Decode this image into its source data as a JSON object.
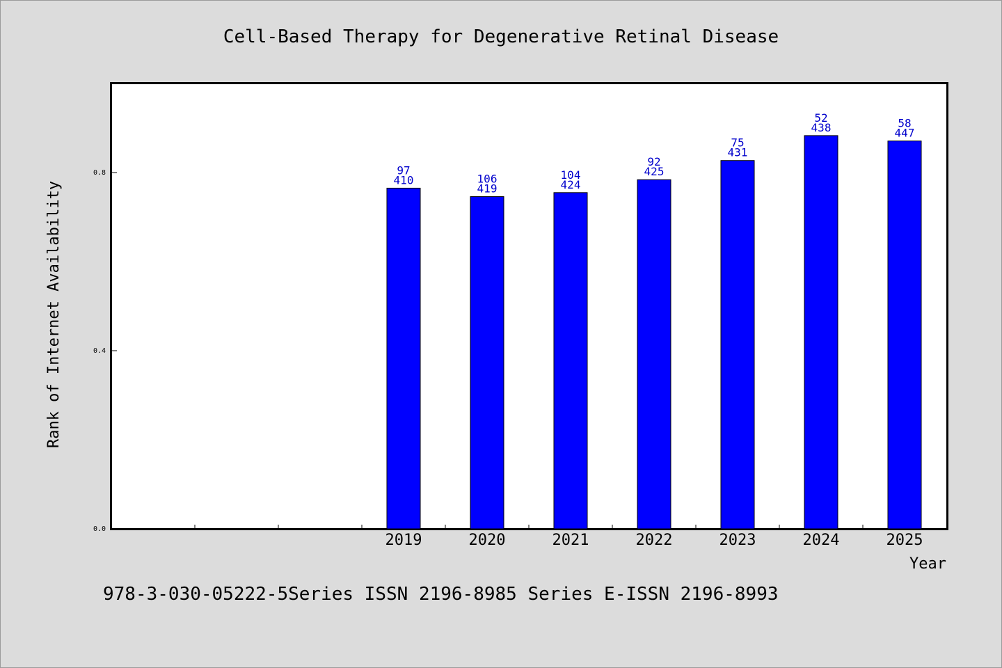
{
  "chart_data": {
    "type": "bar",
    "title": "Cell-Based Therapy for Degenerative Retinal Disease",
    "xlabel": "Year",
    "ylabel": "Rank of Internet Availability",
    "ylim": [
      0,
      1.0
    ],
    "yticks": [
      {
        "value": 0.0,
        "label": "0.0"
      },
      {
        "value": 0.4,
        "label": "0.4"
      },
      {
        "value": 0.8,
        "label": "0.8"
      }
    ],
    "slots": 10,
    "first_bar_slot": 3,
    "categories": [
      "2019",
      "2020",
      "2021",
      "2022",
      "2023",
      "2024",
      "2025"
    ],
    "values": [
      0.765,
      0.746,
      0.755,
      0.784,
      0.827,
      0.883,
      0.871
    ],
    "top_labels": [
      "97",
      "106",
      "104",
      "92",
      "75",
      "52",
      "58"
    ],
    "bottom_labels": [
      "410",
      "419",
      "424",
      "425",
      "431",
      "438",
      "447"
    ],
    "grid": false,
    "colors": {
      "bar": "#0000ff",
      "bar_label": "#0000cc",
      "axis": "#000000",
      "plot_bg": "#ffffff",
      "page_bg": "#dcdcdc"
    }
  },
  "footer": {
    "text": "978-3-030-05222-5Series ISSN 2196-8985 Series E-ISSN 2196-8993"
  }
}
